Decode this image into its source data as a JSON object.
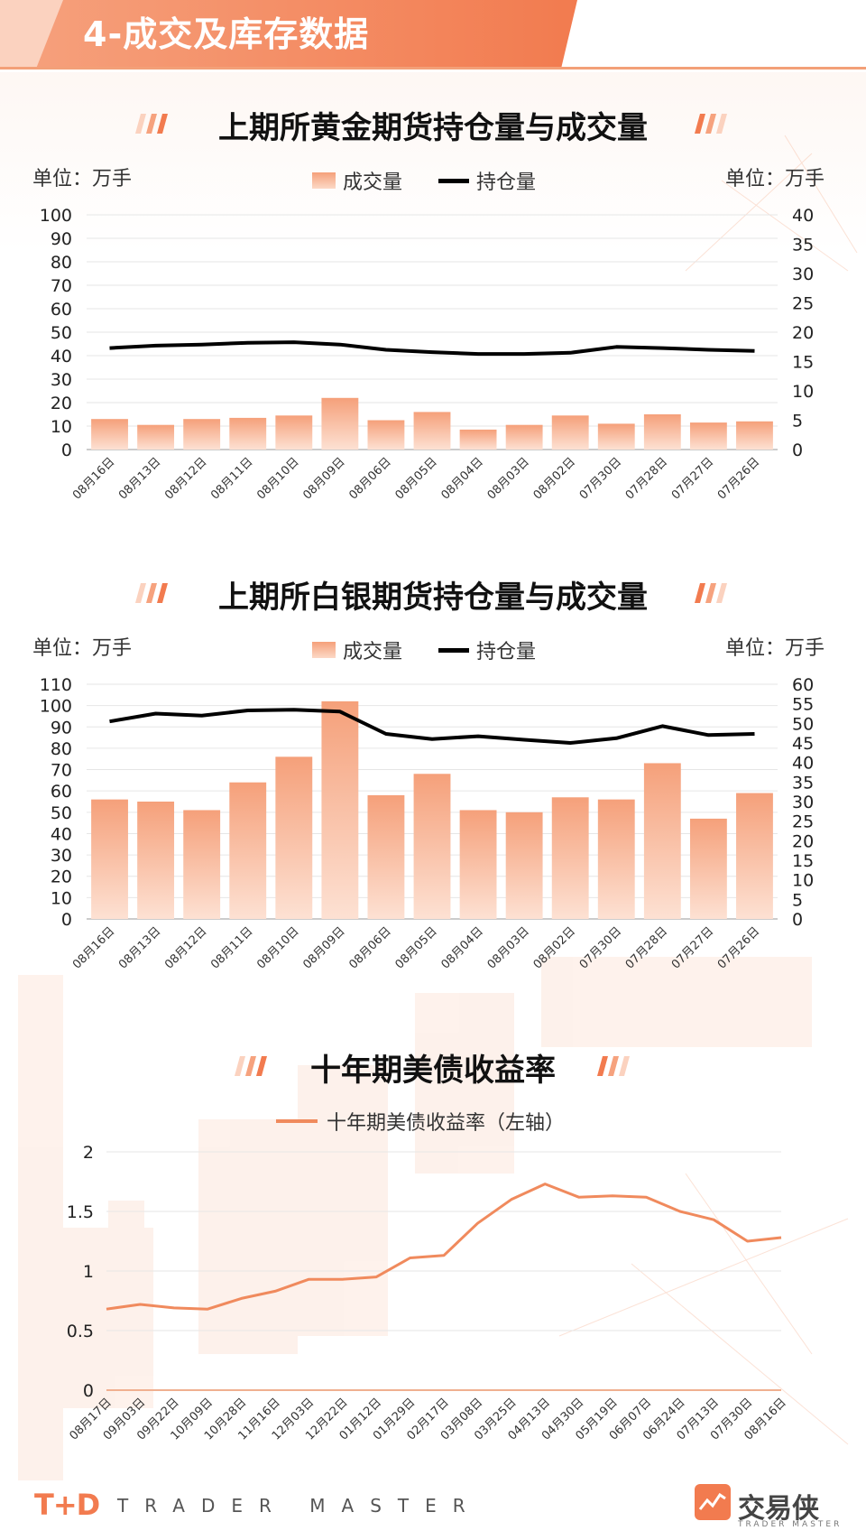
{
  "header": {
    "title": "4-成交及库存数据"
  },
  "colors": {
    "accent": "#f08a5d",
    "bar_top": "#f5a07a",
    "bar_bottom": "#fde1d3",
    "line": "#000000"
  },
  "gold": {
    "title": "上期所黄金期货持仓量与成交量",
    "unit_left": "单位：万手",
    "unit_right": "单位：万手",
    "legend_bar": "成交量",
    "legend_line": "持仓量"
  },
  "silver": {
    "title": "上期所白银期货持仓量与成交量",
    "unit_left": "单位：万手",
    "unit_right": "单位：万手",
    "legend_bar": "成交量",
    "legend_line": "持仓量"
  },
  "treasury": {
    "title": "十年期美债收益率",
    "legend": "十年期美债收益率（左轴）"
  },
  "footer": {
    "brand_mark": "T+D",
    "brand_text": "TRADER MASTER",
    "brand_cn": "交易侠",
    "brand_en": "TRADER MASTER"
  },
  "chart_data": [
    {
      "type": "bar",
      "categories": [
        "08月16日",
        "08月13日",
        "08月12日",
        "08月11日",
        "08月10日",
        "08月09日",
        "08月06日",
        "08月05日",
        "08月04日",
        "08月03日",
        "08月02日",
        "07月30日",
        "07月28日",
        "07月27日",
        "07月26日"
      ],
      "series": [
        {
          "name": "成交量",
          "type": "bar",
          "axis": "left",
          "values": [
            13,
            10.5,
            13,
            13.5,
            14.5,
            22,
            12.5,
            16,
            8.5,
            10.5,
            14.5,
            11,
            15,
            11.5,
            12
          ]
        },
        {
          "name": "持仓量",
          "type": "line",
          "axis": "right",
          "values": [
            17.3,
            17.7,
            17.9,
            18.2,
            18.3,
            17.9,
            17.0,
            16.6,
            16.3,
            16.3,
            16.5,
            17.5,
            17.3,
            17.0,
            16.8
          ]
        }
      ],
      "ylim_left": [
        0,
        100
      ],
      "yticks_left": [
        0,
        10,
        20,
        30,
        40,
        50,
        60,
        70,
        80,
        90,
        100
      ],
      "ylim_right": [
        0,
        40
      ],
      "yticks_right": [
        0,
        5,
        10,
        15,
        20,
        25,
        30,
        35,
        40
      ],
      "grid": true,
      "legend": "top-center"
    },
    {
      "type": "bar",
      "categories": [
        "08月16日",
        "08月13日",
        "08月12日",
        "08月11日",
        "08月10日",
        "08月09日",
        "08月06日",
        "08月05日",
        "08月04日",
        "08月03日",
        "08月02日",
        "07月30日",
        "07月28日",
        "07月27日",
        "07月26日"
      ],
      "series": [
        {
          "name": "成交量",
          "type": "bar",
          "axis": "left",
          "values": [
            56,
            55,
            51,
            64,
            76,
            102,
            58,
            68,
            51,
            50,
            57,
            56,
            73,
            47,
            59
          ]
        },
        {
          "name": "持仓量",
          "type": "line",
          "axis": "right",
          "values": [
            50.5,
            52.5,
            52,
            53.3,
            53.5,
            53,
            47.3,
            46,
            46.7,
            45.8,
            45,
            46.2,
            49.3,
            47,
            47.3
          ]
        }
      ],
      "ylim_left": [
        0,
        110
      ],
      "yticks_left": [
        0,
        10,
        20,
        30,
        40,
        50,
        60,
        70,
        80,
        90,
        100,
        110
      ],
      "ylim_right": [
        0,
        60
      ],
      "yticks_right": [
        0,
        5,
        10,
        15,
        20,
        25,
        30,
        35,
        40,
        45,
        50,
        55,
        60
      ],
      "grid": true,
      "legend": "top-center"
    },
    {
      "type": "line",
      "x": [
        "08月17日",
        "09月03日",
        "09月22日",
        "10月09日",
        "10月28日",
        "11月16日",
        "12月03日",
        "12月22日",
        "01月12日",
        "01月29日",
        "02月17日",
        "03月08日",
        "03月25日",
        "04月13日",
        "04月30日",
        "05月19日",
        "06月07日",
        "06月24日",
        "07月13日",
        "07月30日",
        "08月16日"
      ],
      "series": [
        {
          "name": "十年期美债收益率（左轴）",
          "values": [
            0.68,
            0.72,
            0.69,
            0.68,
            0.77,
            0.83,
            0.93,
            0.93,
            0.95,
            1.11,
            1.13,
            1.4,
            1.6,
            1.73,
            1.62,
            1.63,
            1.62,
            1.5,
            1.43,
            1.25,
            1.28
          ]
        }
      ],
      "ylim": [
        0,
        2
      ],
      "yticks": [
        0,
        0.5,
        1,
        1.5,
        2
      ],
      "grid": true,
      "legend": "top-center"
    }
  ]
}
